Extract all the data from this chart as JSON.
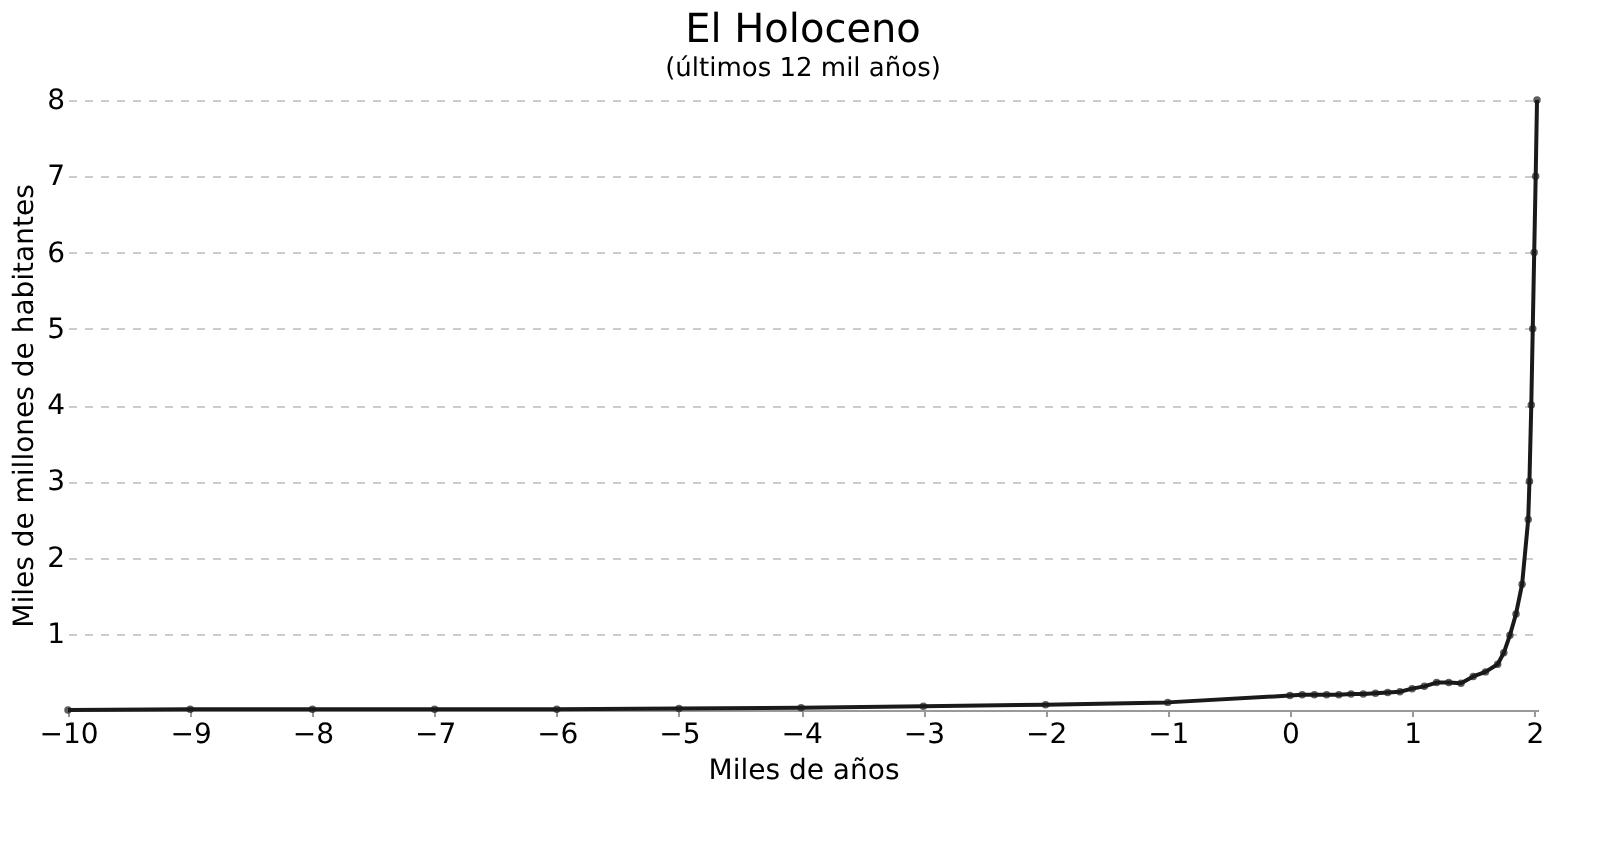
{
  "chart_data": {
    "type": "line",
    "title": "El Holoceno",
    "subtitle": "(últimos 12 mil años)",
    "xlabel": "Miles de años",
    "ylabel": "Miles de millones de habitantes",
    "x": [
      -10,
      -9,
      -8,
      -7,
      -6,
      -5,
      -4,
      -3,
      -2,
      -1,
      0,
      0.1,
      0.2,
      0.3,
      0.4,
      0.5,
      0.6,
      0.7,
      0.8,
      0.9,
      1.0,
      1.1,
      1.2,
      1.3,
      1.4,
      1.5,
      1.6,
      1.7,
      1.75,
      1.8,
      1.85,
      1.9,
      1.95,
      1.96,
      1.975,
      1.987,
      1.999,
      2.011,
      2.022
    ],
    "series": [
      {
        "color": "#1a1a1a",
        "values": [
          0.0,
          0.01,
          0.01,
          0.01,
          0.01,
          0.02,
          0.03,
          0.05,
          0.07,
          0.1,
          0.19,
          0.2,
          0.2,
          0.2,
          0.2,
          0.21,
          0.21,
          0.22,
          0.23,
          0.24,
          0.28,
          0.31,
          0.36,
          0.36,
          0.35,
          0.44,
          0.5,
          0.6,
          0.75,
          0.98,
          1.26,
          1.65,
          2.5,
          3.0,
          4.0,
          5.0,
          6.0,
          7.0,
          8.0
        ]
      }
    ],
    "xlim": [
      -10,
      2.03
    ],
    "xticks": [
      -10,
      -9,
      -8,
      -7,
      -6,
      -5,
      -4,
      -3,
      -2,
      -1,
      0,
      1,
      2
    ],
    "ylim": [
      0,
      8
    ],
    "yticks": [
      1,
      2,
      3,
      4,
      5,
      6,
      7,
      8
    ],
    "grid": "y",
    "marker": "circle",
    "line_style": "solid"
  }
}
